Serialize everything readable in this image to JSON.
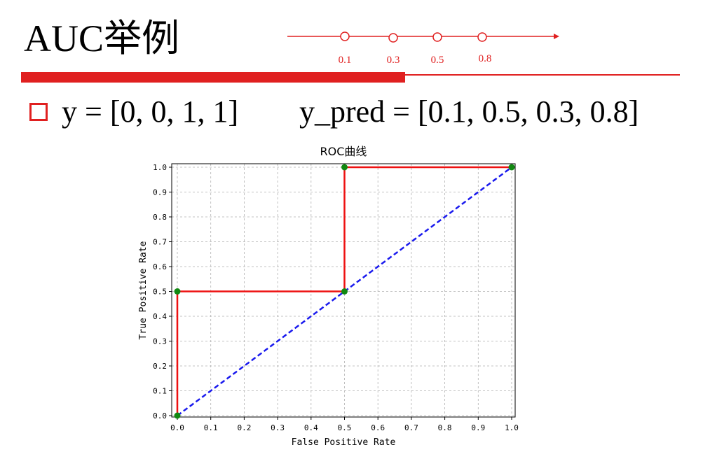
{
  "slide": {
    "title": "AUC举例",
    "y_text": "y = [0, 0, 1, 1]",
    "y_pred_text": "y_pred = [0.1, 0.5, 0.3, 0.8]"
  },
  "number_line": {
    "ticks": [
      "0.1",
      "0.3",
      "0.5",
      "0.8"
    ],
    "color": "#e02020"
  },
  "colors": {
    "accent": "#e02020",
    "roc_line": "#ee1111",
    "diagonal": "#1a1aee",
    "points": "#118811",
    "grid": "#b0b0b0"
  },
  "chart_data": {
    "type": "line",
    "title": "ROC曲线",
    "xlabel": "False Positive Rate",
    "ylabel": "True Positive Rate",
    "xlim": [
      0,
      1
    ],
    "ylim": [
      0,
      1
    ],
    "grid": true,
    "xticks": [
      "0.0",
      "0.1",
      "0.2",
      "0.3",
      "0.4",
      "0.5",
      "0.6",
      "0.7",
      "0.8",
      "0.9",
      "1.0"
    ],
    "yticks": [
      "0.0",
      "0.1",
      "0.2",
      "0.3",
      "0.4",
      "0.5",
      "0.6",
      "0.7",
      "0.8",
      "0.9",
      "1.0"
    ],
    "series": [
      {
        "style": "solid red",
        "x": [
          0,
          0,
          0.5,
          0.5,
          1
        ],
        "y": [
          0,
          0.5,
          0.5,
          1,
          1
        ]
      },
      {
        "style": "dashed blue",
        "x": [
          0,
          1
        ],
        "y": [
          0,
          1
        ]
      }
    ],
    "points": {
      "x": [
        0,
        0,
        0.5,
        0.5,
        1
      ],
      "y": [
        0,
        0.5,
        0.5,
        1,
        1
      ]
    }
  }
}
